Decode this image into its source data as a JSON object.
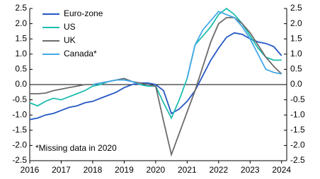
{
  "chart_data": {
    "type": "line",
    "x": [
      2016,
      2016.25,
      2016.5,
      2016.75,
      2017,
      2017.25,
      2017.5,
      2017.75,
      2018,
      2018.25,
      2018.5,
      2018.75,
      2019,
      2019.25,
      2019.5,
      2019.75,
      2020,
      2020.25,
      2020.5,
      2020.75,
      2021,
      2021.25,
      2021.5,
      2021.75,
      2022,
      2022.25,
      2022.5,
      2022.75,
      2023,
      2023.25,
      2023.5,
      2023.75,
      2024
    ],
    "series": [
      {
        "name": "Euro-zone",
        "color": "#2457c5",
        "values": [
          -1.15,
          -1.1,
          -1.0,
          -0.95,
          -0.85,
          -0.75,
          -0.7,
          -0.6,
          -0.55,
          -0.45,
          -0.35,
          -0.25,
          -0.1,
          0.0,
          0.05,
          0.05,
          0.0,
          -0.2,
          -0.95,
          -0.8,
          -0.55,
          -0.2,
          0.3,
          0.8,
          1.2,
          1.55,
          1.7,
          1.65,
          1.5,
          1.4,
          1.35,
          1.25,
          0.95
        ]
      },
      {
        "name": "US",
        "color": "#1dbdae",
        "values": [
          -0.6,
          -0.7,
          -0.55,
          -0.45,
          -0.5,
          -0.4,
          -0.3,
          -0.2,
          -0.05,
          0.0,
          0.1,
          0.15,
          0.2,
          0.1,
          0.0,
          -0.05,
          -0.05,
          -0.6,
          -1.1,
          -0.5,
          0.2,
          1.3,
          1.6,
          1.9,
          2.3,
          2.5,
          2.3,
          2.0,
          1.6,
          1.2,
          0.9,
          0.8,
          0.8
        ]
      },
      {
        "name": "UK",
        "color": "#6b6b6b",
        "values": [
          -0.3,
          -0.3,
          -0.28,
          -0.2,
          -0.15,
          -0.1,
          -0.05,
          0.0,
          0.0,
          0.05,
          0.1,
          0.15,
          0.2,
          0.1,
          0.05,
          0.0,
          -0.05,
          -1.2,
          -2.3,
          -1.6,
          -0.9,
          -0.2,
          0.6,
          1.4,
          2.0,
          2.2,
          2.2,
          2.0,
          1.7,
          1.3,
          0.9,
          0.6,
          0.35
        ]
      },
      {
        "name": "Canada*",
        "color": "#44a8e8",
        "values": [
          null,
          null,
          null,
          null,
          null,
          null,
          null,
          null,
          0.0,
          0.05,
          0.1,
          0.15,
          0.15,
          0.1,
          0.0,
          null,
          null,
          null,
          null,
          null,
          0.2,
          1.3,
          1.8,
          2.1,
          2.4,
          2.3,
          2.2,
          1.9,
          1.5,
          1.0,
          0.5,
          0.4,
          0.35
        ]
      }
    ],
    "xlim": [
      2016,
      2024
    ],
    "xticks": [
      2016,
      2017,
      2018,
      2019,
      2020,
      2021,
      2022,
      2023,
      2024
    ],
    "ylim": [
      -2.5,
      2.5
    ],
    "yticks": [
      -2.5,
      {
        "value": -2,
        "label": "-2.0"
      },
      -1.5,
      {
        "value": -1,
        "label": "-1.0"
      },
      -0.5,
      {
        "value": 0,
        "label": "0.0"
      },
      0.5,
      {
        "value": 1,
        "label": "1.0"
      },
      1.5,
      {
        "value": 2,
        "label": "2.0"
      },
      2.5
    ],
    "y2lim": [
      -2.5,
      2.5
    ],
    "y2ticks": [
      -2.5,
      {
        "value": -2,
        "label": "-2.0"
      },
      -1.5,
      {
        "value": -1,
        "label": "-1.0"
      },
      -0.5,
      {
        "value": 0,
        "label": "0.0"
      },
      0.5,
      {
        "value": 1,
        "label": "1.0"
      },
      1.5,
      {
        "value": 2,
        "label": "2.0"
      },
      2.5
    ],
    "annotation": "*Missing data in 2020",
    "legend": "top-left"
  }
}
